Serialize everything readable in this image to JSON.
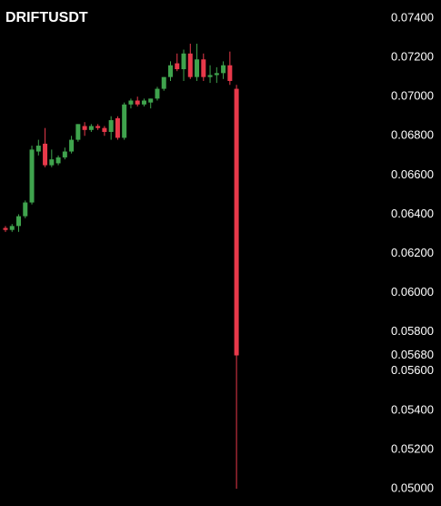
{
  "chart_data": {
    "type": "candlestick",
    "title": "DRIFTUSDT",
    "colors": {
      "up": "#3fa34d",
      "down": "#e8394a"
    },
    "open": [
      0.0633,
      0.0632,
      0.0634,
      0.0639,
      0.0646,
      0.0672,
      0.0676,
      0.0665,
      0.0666,
      0.0669,
      0.0672,
      0.0678,
      0.0685,
      0.0683,
      0.0685,
      0.0684,
      0.0682,
      0.0689,
      0.0679,
      0.0696,
      0.0698,
      0.0696,
      0.0697,
      0.0699,
      0.0704,
      0.071,
      0.0717,
      0.0714,
      0.0722,
      0.071,
      0.0719,
      0.071,
      0.0711,
      0.0712,
      0.0716,
      0.0704
    ],
    "high": [
      0.0634,
      0.0635,
      0.064,
      0.0647,
      0.0675,
      0.0678,
      0.0684,
      0.0673,
      0.067,
      0.0674,
      0.068,
      0.0686,
      0.0687,
      0.0686,
      0.0686,
      0.0685,
      0.069,
      0.069,
      0.0697,
      0.0699,
      0.07,
      0.0699,
      0.0699,
      0.0705,
      0.071,
      0.0718,
      0.0722,
      0.0724,
      0.0727,
      0.0727,
      0.0722,
      0.0716,
      0.0715,
      0.0718,
      0.0723,
      0.0706
    ],
    "low": [
      0.0631,
      0.0631,
      0.0631,
      0.0638,
      0.0645,
      0.067,
      0.0664,
      0.0664,
      0.0665,
      0.0668,
      0.0671,
      0.0677,
      0.068,
      0.0682,
      0.0683,
      0.068,
      0.0678,
      0.0678,
      0.0678,
      0.0694,
      0.0695,
      0.0695,
      0.0694,
      0.0698,
      0.0703,
      0.0708,
      0.0713,
      0.0708,
      0.0709,
      0.0708,
      0.0708,
      0.0707,
      0.0707,
      0.0709,
      0.0706,
      0.05
    ],
    "close": [
      0.0632,
      0.0634,
      0.0639,
      0.0646,
      0.0673,
      0.0675,
      0.0665,
      0.0668,
      0.0669,
      0.0672,
      0.0678,
      0.0686,
      0.0683,
      0.0685,
      0.0684,
      0.0682,
      0.0688,
      0.0679,
      0.0696,
      0.0698,
      0.0696,
      0.0698,
      0.0699,
      0.0704,
      0.071,
      0.0716,
      0.0714,
      0.0722,
      0.071,
      0.0719,
      0.071,
      0.0711,
      0.0712,
      0.0716,
      0.0708,
      0.0568
    ],
    "ylim": [
      0.04935,
      0.07493
    ],
    "yticks": [
      {
        "value": 0.074,
        "label": "0.07400"
      },
      {
        "value": 0.072,
        "label": "0.07200"
      },
      {
        "value": 0.07,
        "label": "0.07000"
      },
      {
        "value": 0.068,
        "label": "0.06800"
      },
      {
        "value": 0.066,
        "label": "0.06600"
      },
      {
        "value": 0.064,
        "label": "0.06400"
      },
      {
        "value": 0.062,
        "label": "0.06200"
      },
      {
        "value": 0.06,
        "label": "0.06000"
      },
      {
        "value": 0.058,
        "label": "0.05800"
      },
      {
        "value": 0.056,
        "label": "0.05600"
      },
      {
        "value": 0.054,
        "label": "0.05400"
      },
      {
        "value": 0.052,
        "label": "0.05200"
      },
      {
        "value": 0.05,
        "label": "0.05000"
      }
    ],
    "last_price": {
      "value": 0.0568,
      "label": "0.05680"
    }
  }
}
